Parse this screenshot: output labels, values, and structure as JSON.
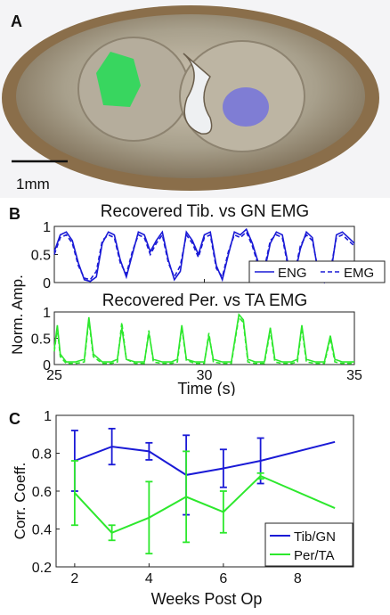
{
  "panel_labels": {
    "a": "A",
    "b": "B",
    "c": "C"
  },
  "scale_bar_label": "1mm",
  "colors": {
    "blue": "#1a1ad6",
    "green": "#2de82d"
  },
  "chart_data": [
    {
      "type": "line",
      "title": "Recovered Tib. vs GN EMG",
      "ylabel": "Norm. Amp.",
      "xlim": [
        25,
        35
      ],
      "ylim": [
        0,
        1
      ],
      "yticks": [
        "0",
        "0.5",
        "1"
      ],
      "legend_placement": "bottom-right",
      "series": [
        {
          "name": "ENG",
          "style": "solid",
          "x": [
            25.0,
            25.2,
            25.4,
            25.6,
            25.8,
            26.0,
            26.2,
            26.4,
            26.6,
            26.8,
            27.0,
            27.2,
            27.4,
            27.6,
            27.8,
            28.0,
            28.2,
            28.4,
            28.6,
            28.8,
            29.0,
            29.2,
            29.4,
            29.6,
            29.8,
            30.0,
            30.2,
            30.4,
            30.6,
            30.8,
            31.0,
            31.2,
            31.4,
            31.6,
            31.8,
            32.0,
            32.2,
            32.4,
            32.6,
            32.8,
            33.0,
            33.2,
            33.4,
            33.6,
            33.8,
            34.0,
            34.2,
            34.4,
            34.6,
            34.8,
            35.0
          ],
          "y": [
            0.55,
            0.85,
            0.9,
            0.75,
            0.35,
            0.05,
            0.02,
            0.1,
            0.7,
            0.9,
            0.85,
            0.4,
            0.1,
            0.5,
            0.9,
            0.85,
            0.55,
            0.75,
            0.9,
            0.4,
            0.05,
            0.2,
            0.9,
            0.75,
            0.5,
            0.85,
            0.9,
            0.3,
            0.05,
            0.5,
            0.9,
            0.85,
            0.95,
            0.7,
            0.35,
            0.2,
            0.7,
            0.9,
            0.85,
            0.3,
            0.1,
            0.6,
            0.9,
            0.8,
            0.15,
            0.0,
            0.1,
            0.85,
            0.9,
            0.8,
            0.7
          ]
        },
        {
          "name": "EMG",
          "style": "dashed",
          "x": [
            25.0,
            25.2,
            25.4,
            25.6,
            25.8,
            26.0,
            26.2,
            26.4,
            26.6,
            26.8,
            27.0,
            27.2,
            27.4,
            27.6,
            27.8,
            28.0,
            28.2,
            28.4,
            28.6,
            28.8,
            29.0,
            29.2,
            29.4,
            29.6,
            29.8,
            30.0,
            30.2,
            30.4,
            30.6,
            30.8,
            31.0,
            31.2,
            31.4,
            31.6,
            31.8,
            32.0,
            32.2,
            32.4,
            32.6,
            32.8,
            33.0,
            33.2,
            33.4,
            33.6,
            33.8,
            34.0,
            34.2,
            34.4,
            34.6,
            34.8,
            35.0
          ],
          "y": [
            0.5,
            0.8,
            0.85,
            0.7,
            0.3,
            0.08,
            0.05,
            0.2,
            0.75,
            0.85,
            0.8,
            0.35,
            0.15,
            0.55,
            0.85,
            0.8,
            0.5,
            0.7,
            0.85,
            0.35,
            0.1,
            0.3,
            0.85,
            0.7,
            0.45,
            0.8,
            0.85,
            0.25,
            0.1,
            0.55,
            0.85,
            0.8,
            0.9,
            0.65,
            0.3,
            0.25,
            0.75,
            0.85,
            0.8,
            0.25,
            0.15,
            0.65,
            0.85,
            0.75,
            0.2,
            0.05,
            0.2,
            0.8,
            0.85,
            0.75,
            0.65
          ]
        }
      ]
    },
    {
      "type": "line",
      "title": "Recovered Per. vs TA EMG",
      "xlabel": "Time (s)",
      "xlim": [
        25,
        35
      ],
      "xticks": [
        "25",
        "30",
        "35"
      ],
      "ylim": [
        0,
        1
      ],
      "yticks": [
        "0",
        "0.5",
        "1"
      ],
      "series": [
        {
          "name": "ENG",
          "style": "solid",
          "x": [
            25.0,
            25.1,
            25.2,
            25.4,
            25.7,
            26.0,
            26.15,
            26.3,
            26.6,
            26.9,
            27.1,
            27.25,
            27.4,
            27.7,
            28.0,
            28.15,
            28.3,
            28.6,
            28.9,
            29.1,
            29.25,
            29.4,
            29.7,
            30.0,
            30.15,
            30.3,
            30.6,
            30.9,
            31.15,
            31.3,
            31.45,
            31.7,
            32.0,
            32.2,
            32.35,
            32.6,
            32.9,
            33.1,
            33.25,
            33.4,
            33.7,
            34.0,
            34.2,
            34.35,
            34.6,
            35.0
          ],
          "y": [
            0.3,
            0.75,
            0.2,
            0.05,
            0.05,
            0.1,
            0.9,
            0.2,
            0.05,
            0.05,
            0.1,
            0.7,
            0.1,
            0.05,
            0.05,
            0.6,
            0.1,
            0.05,
            0.05,
            0.1,
            0.75,
            0.1,
            0.05,
            0.05,
            0.55,
            0.1,
            0.05,
            0.05,
            0.95,
            0.85,
            0.1,
            0.05,
            0.05,
            0.7,
            0.1,
            0.05,
            0.05,
            0.1,
            0.75,
            0.1,
            0.05,
            0.05,
            0.55,
            0.1,
            0.05,
            0.05
          ]
        },
        {
          "name": "EMG",
          "style": "dashed",
          "x": [
            25.0,
            25.1,
            25.2,
            25.4,
            25.7,
            26.0,
            26.15,
            26.3,
            26.6,
            26.9,
            27.1,
            27.25,
            27.4,
            27.7,
            28.0,
            28.15,
            28.3,
            28.6,
            28.9,
            29.1,
            29.25,
            29.4,
            29.7,
            30.0,
            30.15,
            30.3,
            30.6,
            30.9,
            31.15,
            31.3,
            31.45,
            31.7,
            32.0,
            32.2,
            32.35,
            32.6,
            32.9,
            33.1,
            33.25,
            33.4,
            33.7,
            34.0,
            34.2,
            34.35,
            34.6,
            35.0
          ],
          "y": [
            0.25,
            0.7,
            0.15,
            0.02,
            0.02,
            0.05,
            0.85,
            0.15,
            0.02,
            0.02,
            0.05,
            0.8,
            0.1,
            0.02,
            0.02,
            0.65,
            0.05,
            0.02,
            0.02,
            0.05,
            0.7,
            0.08,
            0.02,
            0.02,
            0.6,
            0.05,
            0.02,
            0.02,
            0.9,
            0.8,
            0.05,
            0.02,
            0.02,
            0.65,
            0.05,
            0.02,
            0.02,
            0.05,
            0.7,
            0.05,
            0.02,
            0.02,
            0.5,
            0.05,
            0.02,
            0.02
          ]
        }
      ]
    },
    {
      "type": "line",
      "xlabel": "Weeks Post Op",
      "ylabel": "Corr. Coeff.",
      "xlim": [
        1.5,
        9.5
      ],
      "xticks": [
        "2",
        "4",
        "6",
        "8"
      ],
      "ylim": [
        0.2,
        1.0
      ],
      "yticks": [
        "0.2",
        "0.4",
        "0.6",
        "0.8",
        "1"
      ],
      "legend_placement": "bottom-right",
      "series": [
        {
          "name": "Tib/GN",
          "x": [
            2,
            3,
            4,
            5,
            6,
            7,
            9
          ],
          "y": [
            0.76,
            0.835,
            0.81,
            0.685,
            0.72,
            0.76,
            0.86
          ],
          "err": [
            0.16,
            0.095,
            0.045,
            0.21,
            0.1,
            0.12,
            0
          ]
        },
        {
          "name": "Per/TA",
          "x": [
            2,
            3,
            4,
            5,
            6,
            7,
            9
          ],
          "y": [
            0.59,
            0.38,
            0.46,
            0.57,
            0.49,
            0.68,
            0.51
          ],
          "err": [
            0.17,
            0.04,
            0.19,
            0.24,
            0.11,
            0.015,
            0
          ]
        }
      ]
    }
  ]
}
